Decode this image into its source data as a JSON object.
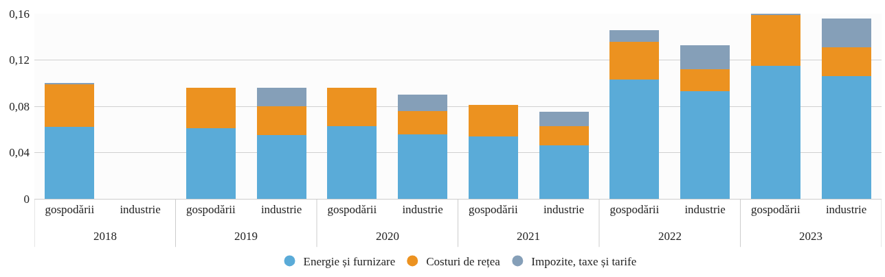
{
  "chart_data": {
    "type": "bar",
    "stacked": true,
    "categories": [
      "gospodării",
      "industrie",
      "gospodării",
      "industrie",
      "gospodării",
      "industrie",
      "gospodării",
      "industrie",
      "gospodării",
      "industrie",
      "gospodării",
      "industrie"
    ],
    "series": [
      {
        "name": "Energie și furnizare",
        "color": "#5aabd8",
        "values": [
          0.062,
          null,
          0.061,
          0.055,
          0.063,
          0.056,
          0.054,
          0.046,
          0.103,
          0.093,
          0.115,
          0.106
        ]
      },
      {
        "name": "Costuri de rețea",
        "color": "#ec9220",
        "values": [
          0.037,
          null,
          0.035,
          0.025,
          0.033,
          0.02,
          0.027,
          0.017,
          0.033,
          0.019,
          0.044,
          0.025
        ]
      },
      {
        "name": "Impozite, taxe și tarife",
        "color": "#859fb8",
        "values": [
          0.001,
          null,
          0,
          0.016,
          0,
          0.014,
          0,
          0.012,
          0.01,
          0.021,
          0.001,
          0.025
        ]
      }
    ],
    "annotations": [
      "2018",
      "2019",
      "2020",
      "2021",
      "2022",
      "2023"
    ],
    "ylim": [
      0,
      0.16
    ],
    "yticks": [
      {
        "value": 0,
        "label": "0"
      },
      {
        "value": 0.04,
        "label": "0,04"
      },
      {
        "value": 0.08,
        "label": "0,08"
      },
      {
        "value": 0.12,
        "label": "0,12"
      },
      {
        "value": 0.16,
        "label": "0,16"
      }
    ],
    "grid": "y",
    "legend": "bottom",
    "marker": "circle"
  }
}
